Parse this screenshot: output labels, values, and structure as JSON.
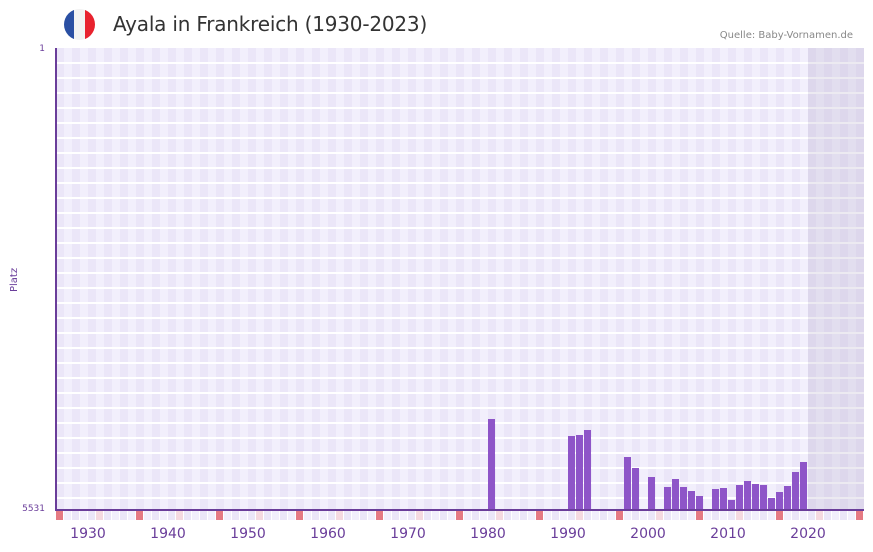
{
  "header": {
    "title": "Ayala in Frankreich (1930-2023)",
    "source": "Quelle: Baby-Vornamen.de",
    "flag_icon": "france-flag-icon",
    "flag_colors": [
      "#2a4fa3",
      "#f2f2f2",
      "#e8222e"
    ]
  },
  "colors": {
    "bar": "#8e55c8",
    "axis": "#6a3d9a",
    "grid_bg": "#f2effc",
    "decade_mark": "#e57a83",
    "half_decade_mark": "#f5d9e0"
  },
  "chart_data": {
    "type": "bar",
    "title": "Ayala in Frankreich (1930-2023)",
    "xlabel": "",
    "ylabel": "Platz",
    "y_inverted": true,
    "ylim": [
      5531,
      1
    ],
    "yticks": [
      "1",
      "5531"
    ],
    "xticks": [
      "1930",
      "1940",
      "1950",
      "1960",
      "1970",
      "1980",
      "1990",
      "2000",
      "2010",
      "2020"
    ],
    "x": [
      1982,
      1992,
      1993,
      1994,
      1999,
      2000,
      2002,
      2004,
      2005,
      2006,
      2007,
      2008,
      2010,
      2011,
      2012,
      2013,
      2014,
      2015,
      2016,
      2017,
      2018,
      2019,
      2020,
      2021
    ],
    "values": [
      4443,
      4647,
      4635,
      4575,
      4888,
      5032,
      5140,
      5249,
      5164,
      5249,
      5297,
      5357,
      5273,
      5261,
      5405,
      5225,
      5177,
      5213,
      5225,
      5381,
      5309,
      5237,
      5080,
      4948
    ],
    "grid": true,
    "legend": null
  }
}
